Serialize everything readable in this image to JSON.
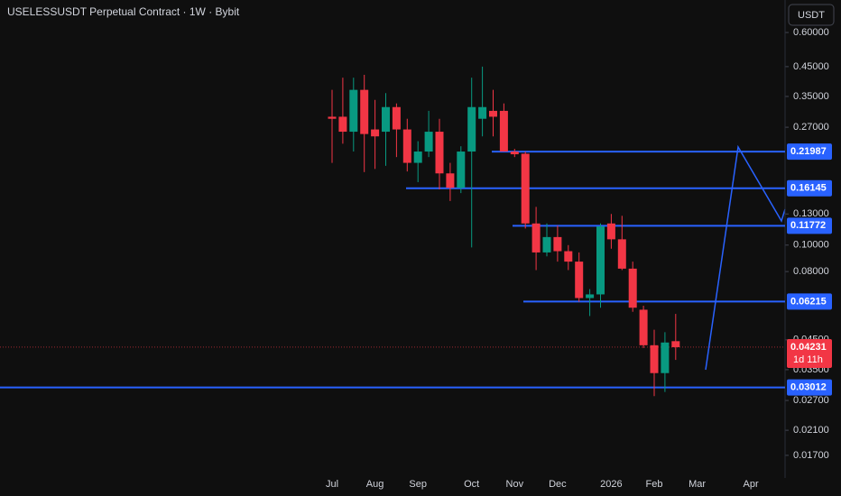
{
  "chart_data": {
    "type": "candlestick",
    "title": "USELESSUSDT Perpetual Contract · 1W · Bybit",
    "currency": "USDT",
    "categories": [
      "Jul",
      null,
      null,
      null,
      "Aug",
      null,
      null,
      null,
      "Sep",
      null,
      null,
      null,
      null,
      "Oct",
      null,
      null,
      null,
      "Nov",
      null,
      null,
      null,
      "Dec",
      null,
      null,
      null,
      null,
      "2026",
      null,
      null,
      null,
      "Feb",
      null,
      null,
      null,
      "Mar",
      null,
      null,
      null,
      null,
      "Apr",
      null,
      null,
      null
    ],
    "open": [
      0.295,
      0.295,
      0.26,
      0.37,
      0.265,
      0.26,
      0.32,
      0.265,
      0.2,
      0.22,
      0.26,
      0.183,
      0.162,
      0.22,
      0.29,
      0.31,
      0.31,
      0.22,
      0.216,
      0.12,
      0.094,
      0.107,
      0.095,
      0.087,
      0.064,
      0.066,
      0.12,
      0.105,
      0.082,
      0.058,
      0.043,
      0.034,
      0.0445,
      null,
      null,
      null,
      null,
      null,
      null,
      null,
      null,
      null,
      null
    ],
    "high": [
      0.37,
      0.41,
      0.41,
      0.42,
      0.34,
      0.36,
      0.33,
      0.29,
      0.24,
      0.31,
      0.29,
      0.2,
      0.23,
      0.41,
      0.45,
      0.37,
      0.33,
      0.225,
      0.22,
      0.138,
      0.12,
      0.118,
      0.1,
      0.094,
      0.069,
      0.12,
      0.13,
      0.128,
      0.087,
      0.06,
      0.049,
      0.048,
      0.056,
      null,
      null,
      null,
      null,
      null,
      null,
      null,
      null,
      null,
      null
    ],
    "low": [
      0.2,
      0.235,
      0.22,
      0.185,
      0.19,
      0.195,
      0.21,
      0.186,
      0.17,
      0.21,
      0.16,
      0.145,
      0.155,
      0.098,
      0.25,
      0.25,
      0.22,
      0.21,
      0.115,
      0.081,
      0.091,
      0.087,
      0.081,
      0.062,
      0.055,
      0.059,
      0.097,
      0.081,
      0.057,
      0.042,
      0.028,
      0.029,
      0.038,
      null,
      null,
      null,
      null,
      null,
      null,
      null,
      null,
      null,
      null
    ],
    "close": [
      0.29,
      0.26,
      0.37,
      0.255,
      0.25,
      0.32,
      0.265,
      0.2,
      0.22,
      0.26,
      0.183,
      0.162,
      0.22,
      0.32,
      0.32,
      0.295,
      0.22,
      0.215,
      0.12,
      0.094,
      0.107,
      0.095,
      0.087,
      0.064,
      0.066,
      0.117,
      0.105,
      0.082,
      0.059,
      0.043,
      0.034,
      0.044,
      0.04231,
      null,
      null,
      null,
      null,
      null,
      null,
      null,
      null,
      null,
      null
    ],
    "up_color": "#089981",
    "down_color": "#f23645",
    "ylim": [
      0.01405,
      0.789
    ],
    "log_scale": true,
    "yticks": [
      {
        "value": 0.6,
        "label": "0.60000"
      },
      {
        "value": 0.45,
        "label": "0.45000"
      },
      {
        "value": 0.35,
        "label": "0.35000"
      },
      {
        "value": 0.27,
        "label": "0.27000"
      },
      {
        "value": 0.13,
        "label": "0.13000"
      },
      {
        "value": 0.1,
        "label": "0.10000"
      },
      {
        "value": 0.08,
        "label": "0.08000"
      },
      {
        "value": 0.045,
        "label": "0.04500"
      },
      {
        "value": 0.035,
        "label": "0.03500"
      },
      {
        "value": 0.027,
        "label": "0.02700"
      },
      {
        "value": 0.021,
        "label": "0.02100"
      },
      {
        "value": 0.017,
        "label": "0.01700"
      }
    ],
    "levels": [
      0.21987,
      0.16145,
      0.11772,
      0.06215,
      0.03012
    ],
    "level_color": "#2962ff",
    "last_price": 0.04231,
    "countdown": "1d 11h"
  }
}
